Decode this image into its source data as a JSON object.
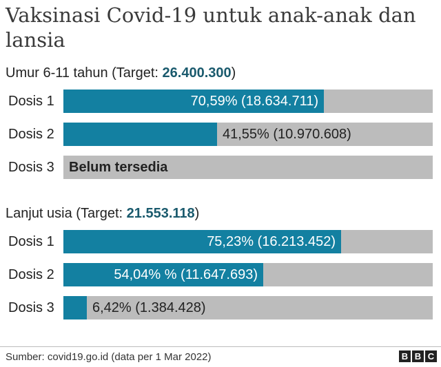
{
  "title": "Vaksinasi Covid-19 untuk anak-anak dan lansia",
  "chart_data": {
    "type": "bar",
    "orientation": "horizontal",
    "groups": [
      {
        "label": "Umur 6-11 tahun (Target:",
        "target": "26.400.300",
        "label_close": ")",
        "bars": [
          {
            "category": "Dosis 1",
            "value": 70.59,
            "label": "70,59% (18.634.711)"
          },
          {
            "category": "Dosis 2",
            "value": 41.55,
            "label": "41,55% (10.970.608)"
          },
          {
            "category": "Dosis 3",
            "value": 0,
            "label": "Belum tersedia"
          }
        ]
      },
      {
        "label": "Lanjut usia (Target:",
        "target": "21.553.118",
        "label_close": ")",
        "bars": [
          {
            "category": "Dosis 1",
            "value": 75.23,
            "label": "75,23% (16.213.452)"
          },
          {
            "category": "Dosis 2",
            "value": 54.04,
            "label": "54,04% % (11.647.693)"
          },
          {
            "category": "Dosis 3",
            "value": 6.42,
            "label": "6,42% (1.384.428)"
          }
        ]
      }
    ],
    "xlim": [
      0,
      100
    ],
    "colors": {
      "fill": "#1380a1",
      "track": "#bcbcbc",
      "target": "#1a5a6d"
    },
    "grid": false,
    "legend": "none"
  },
  "footer": {
    "source": "Sumber: covid19.go.id (data per 1 Mar 2022)",
    "logo_letters": [
      "B",
      "B",
      "C"
    ]
  }
}
